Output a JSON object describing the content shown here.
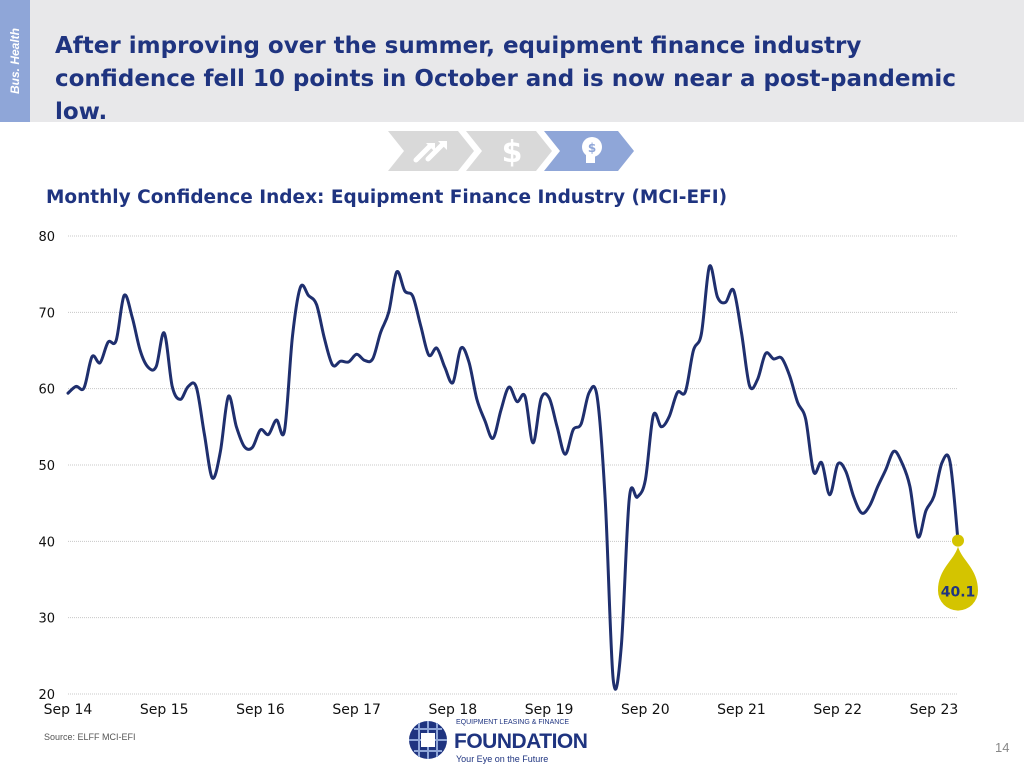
{
  "side_tab": "Bus. Health",
  "headline": "After improving over the summer, equipment finance industry confidence fell 10 points in October and is now near a post-pandemic low.",
  "chevron_icons": [
    "chart-arrows-icon",
    "dollar-icon",
    "money-head-icon"
  ],
  "colors": {
    "title_blue": "#1f3480",
    "line": "#1f2f6e",
    "highlight": "#d4c400",
    "grid": "#c8c8c8",
    "header_bg": "#e8e8ea",
    "side_tab": "#8fa6d8"
  },
  "chart_data": {
    "type": "line",
    "title": "Monthly Confidence Index: Equipment Finance Industry (MCI-EFI)",
    "xlabel": "",
    "ylabel": "",
    "ylim": [
      20,
      80
    ],
    "yticks": [
      20,
      30,
      40,
      50,
      60,
      70,
      80
    ],
    "grid": true,
    "x_ticks": [
      "Sep 14",
      "Sep 15",
      "Sep 16",
      "Sep 17",
      "Sep 18",
      "Sep 19",
      "Sep 20",
      "Sep 21",
      "Sep 22",
      "Sep 23"
    ],
    "series": [
      {
        "values": [
          59.4,
          60.3,
          60.1,
          64.2,
          63.4,
          66.1,
          66.3,
          72.2,
          69.4,
          65.0,
          62.8,
          62.9,
          67.3,
          60.3,
          58.6,
          60.3,
          60.2,
          54.1,
          48.3,
          51.7,
          59.0,
          55.0,
          52.4,
          52.3,
          54.6,
          54.0,
          55.9,
          54.5,
          66.9,
          73.3,
          72.2,
          71.0,
          66.5,
          63.1,
          63.6,
          63.5,
          64.5,
          63.7,
          63.9,
          67.4,
          70.0,
          75.3,
          72.8,
          72.1,
          68.2,
          64.4,
          65.3,
          62.8,
          60.8,
          65.3,
          63.5,
          58.6,
          55.8,
          53.5,
          57.2,
          60.2,
          58.3,
          59.0,
          52.9,
          58.7,
          58.8,
          55.0,
          51.4,
          54.6,
          55.4,
          59.5,
          58.9,
          45.5,
          21.9,
          26.1,
          45.6,
          45.8,
          48.0,
          56.5,
          55.0,
          56.4,
          59.5,
          59.6,
          65.0,
          67.2,
          76.0,
          72.0,
          71.3,
          72.9,
          67.3,
          60.4,
          61.2,
          64.6,
          63.9,
          64.0,
          61.7,
          58.2,
          56.0,
          49.1,
          50.3,
          46.1,
          50.1,
          49.2,
          45.8,
          43.7,
          44.7,
          47.2,
          49.4,
          51.8,
          50.3,
          47.2,
          40.6,
          44.0,
          45.9,
          50.3,
          50.4,
          40.1
        ]
      }
    ],
    "last_label": "40.1",
    "source": "Source:  ELFF MCI-EFI"
  },
  "logo": {
    "top": "EQUIPMENT LEASING & FINANCE",
    "name": "FOUNDATION",
    "tag": "Your Eye on the Future"
  },
  "page_number": "14"
}
